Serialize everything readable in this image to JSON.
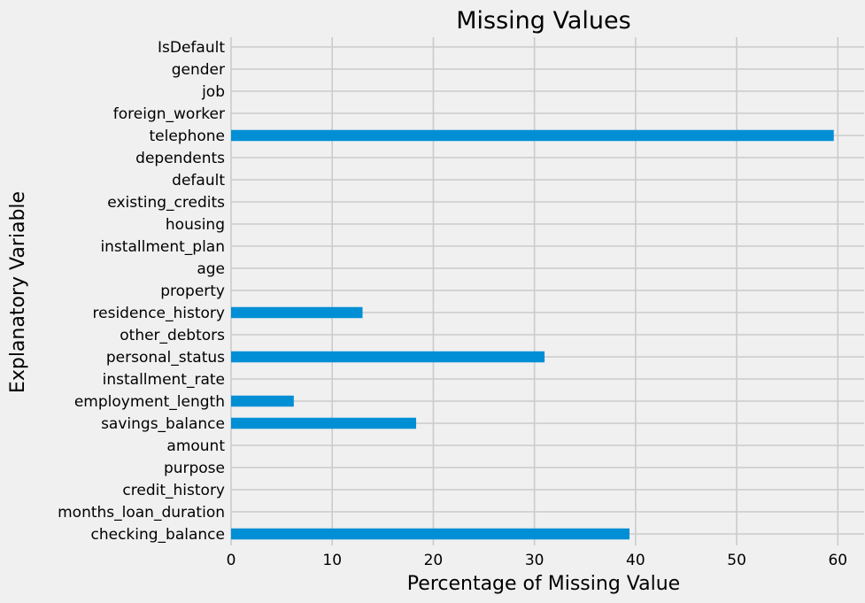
{
  "colors": {
    "background": "#f0f0f0",
    "bar": "#008fd5",
    "grid": "#cbcbcb"
  },
  "chart_data": {
    "type": "bar",
    "orientation": "horizontal",
    "title": "Missing Values",
    "xlabel": "Percentage of Missing Value",
    "ylabel": "Explanatory Variable",
    "xlim": [
      0,
      62.6
    ],
    "xticks": [
      0,
      10,
      20,
      30,
      40,
      50,
      60
    ],
    "grid": true,
    "categories": [
      "checking_balance",
      "months_loan_duration",
      "credit_history",
      "purpose",
      "amount",
      "savings_balance",
      "employment_length",
      "installment_rate",
      "personal_status",
      "other_debtors",
      "residence_history",
      "property",
      "age",
      "installment_plan",
      "housing",
      "existing_credits",
      "default",
      "dependents",
      "telephone",
      "foreign_worker",
      "job",
      "gender",
      "IsDefault"
    ],
    "values": [
      39.4,
      0,
      0,
      0,
      0,
      18.3,
      6.2,
      0,
      31.0,
      0,
      13.0,
      0,
      0,
      0,
      0,
      0,
      0,
      0,
      59.6,
      0,
      0,
      0,
      0
    ]
  }
}
